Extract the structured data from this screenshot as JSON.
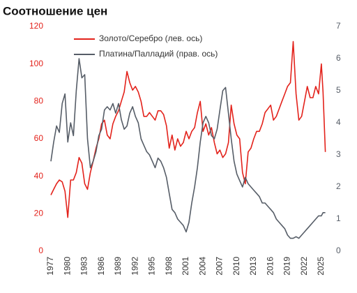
{
  "chart_data": {
    "type": "line",
    "title": "Соотношение цен",
    "x": [
      1977,
      1977.5,
      1978,
      1978.5,
      1979,
      1979.5,
      1980,
      1980.5,
      1981,
      1981.5,
      1982,
      1982.5,
      1983,
      1983.5,
      1984,
      1984.5,
      1985,
      1985.5,
      1986,
      1986.5,
      1987,
      1987.5,
      1988,
      1988.5,
      1989,
      1989.5,
      1990,
      1990.5,
      1991,
      1991.5,
      1992,
      1992.5,
      1993,
      1993.5,
      1994,
      1994.5,
      1995,
      1995.5,
      1996,
      1996.5,
      1997,
      1997.5,
      1998,
      1998.5,
      1999,
      1999.5,
      2000,
      2000.5,
      2001,
      2001.5,
      2002,
      2002.5,
      2003,
      2003.5,
      2004,
      2004.5,
      2005,
      2005.5,
      2006,
      2006.5,
      2007,
      2007.5,
      2008,
      2008.5,
      2009,
      2009.5,
      2010,
      2010.5,
      2011,
      2011.5,
      2012,
      2012.5,
      2013,
      2013.5,
      2014,
      2014.5,
      2015,
      2015.5,
      2016,
      2016.5,
      2017,
      2017.5,
      2018,
      2018.5,
      2019,
      2019.5,
      2020,
      2020.5,
      2021,
      2021.5,
      2022,
      2022.5,
      2023,
      2023.5,
      2024,
      2024.5,
      2025,
      2025.3,
      2025.7
    ],
    "series": [
      {
        "name": "Золото/Серебро (лев. ось)",
        "color": "#e3221b",
        "axis": "y",
        "values": [
          30,
          33,
          36,
          38,
          37,
          32,
          18,
          38,
          38,
          42,
          50,
          47,
          36,
          33,
          42,
          48,
          55,
          60,
          68,
          70,
          62,
          60,
          68,
          72,
          75,
          80,
          85,
          96,
          90,
          86,
          88,
          85,
          80,
          72,
          72,
          74,
          72,
          70,
          75,
          75,
          73,
          67,
          55,
          62,
          54,
          60,
          56,
          58,
          64,
          60,
          64,
          66,
          74,
          80,
          64,
          68,
          62,
          66,
          58,
          52,
          54,
          50,
          52,
          58,
          78,
          68,
          62,
          60,
          42,
          36,
          53,
          55,
          60,
          64,
          64,
          68,
          74,
          76,
          78,
          70,
          72,
          76,
          80,
          84,
          88,
          90,
          112,
          84,
          70,
          72,
          80,
          88,
          82,
          82,
          88,
          84,
          100,
          85,
          53
        ]
      },
      {
        "name": "Платина/Палладий (прав. ось)",
        "color": "#565d67",
        "axis": "y2",
        "values": [
          2.8,
          3.4,
          3.9,
          3.7,
          4.6,
          4.9,
          3.4,
          4.0,
          3.6,
          5.0,
          6.0,
          5.4,
          5.5,
          3.5,
          2.6,
          2.8,
          3.1,
          3.6,
          3.8,
          4.4,
          4.5,
          4.4,
          4.6,
          4.3,
          4.6,
          4.1,
          3.8,
          3.9,
          4.3,
          4.5,
          4.2,
          4.0,
          3.5,
          3.3,
          3.1,
          3.0,
          2.8,
          2.6,
          2.9,
          2.8,
          2.6,
          2.3,
          1.8,
          1.3,
          1.2,
          1.0,
          0.9,
          0.8,
          0.6,
          0.9,
          1.5,
          2.0,
          2.6,
          3.4,
          4.0,
          4.2,
          4.0,
          3.6,
          3.5,
          3.8,
          4.4,
          5.0,
          5.1,
          4.3,
          3.5,
          2.8,
          2.4,
          2.2,
          2.0,
          2.3,
          2.1,
          2.0,
          1.9,
          1.8,
          1.7,
          1.5,
          1.5,
          1.4,
          1.3,
          1.2,
          1.0,
          0.9,
          0.8,
          0.7,
          0.5,
          0.4,
          0.4,
          0.45,
          0.4,
          0.5,
          0.6,
          0.7,
          0.8,
          0.9,
          1.0,
          1.1,
          1.1,
          1.2,
          1.2
        ]
      }
    ],
    "xlim": [
      1977,
      2026
    ],
    "xticks": [
      1977,
      1980,
      1983,
      1986,
      1989,
      1992,
      1995,
      1998,
      2001,
      2004,
      2007,
      2010,
      2013,
      2016,
      2019,
      2022,
      2025
    ],
    "ylim": [
      0,
      120
    ],
    "yticks": [
      0,
      20,
      40,
      60,
      80,
      100,
      120
    ],
    "y2lim": [
      0,
      7
    ],
    "y2ticks": [
      0,
      1,
      2,
      3,
      4,
      5,
      6,
      7
    ]
  }
}
